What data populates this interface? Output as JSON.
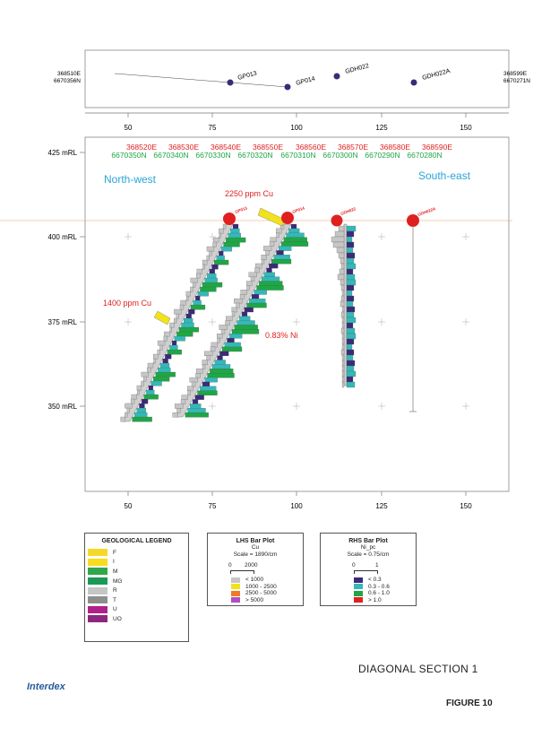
{
  "plan": {
    "left_coord": {
      "e": "368510E",
      "n": "6670356N"
    },
    "right_coord": {
      "e": "368599E",
      "n": "6670271N"
    },
    "holes": [
      "GP013",
      "GP014",
      "GDH022",
      "GDH022A"
    ]
  },
  "axis": {
    "x_ticks": [
      "50",
      "75",
      "100",
      "125",
      "150"
    ],
    "y_ticks": [
      "425 mRL",
      "400 mRL",
      "375 mRL",
      "350 mRL"
    ]
  },
  "eastings": [
    "368520E",
    "368530E",
    "368540E",
    "368550E",
    "368560E",
    "368570E",
    "368580E",
    "368590E"
  ],
  "northings": [
    "6670350N",
    "6670340N",
    "6670330N",
    "6670320N",
    "6670310N",
    "6670300N",
    "6670290N",
    "6670280N"
  ],
  "section": {
    "north_west": "North-west",
    "south_east": "South-east",
    "collars": [
      "GP013",
      "GP014",
      "GDH022",
      "GDH022A"
    ],
    "annotations": [
      "2250 ppm Cu",
      "1400 ppm Cu",
      "0.83% Ni"
    ]
  },
  "geo_legend": {
    "title": "GEOLOGICAL LEGEND",
    "items": [
      {
        "code": "F",
        "color": "#f5d92a"
      },
      {
        "code": "I",
        "color": "#f7dc1f"
      },
      {
        "code": "M",
        "color": "#2ea84a"
      },
      {
        "code": "MG",
        "color": "#1a9a56"
      },
      {
        "code": "R",
        "color": "#c6c6c6"
      },
      {
        "code": "T",
        "color": "#8e8e8e"
      },
      {
        "code": "U",
        "color": "#b0208a"
      },
      {
        "code": "UO",
        "color": "#8e2680"
      }
    ]
  },
  "lhs": {
    "title": "LHS Bar Plot",
    "field": "Cu",
    "scale": "Scale = 1890/cm",
    "scale_ticks": [
      "0",
      "2000"
    ],
    "items": [
      {
        "label": "< 1000",
        "color": "#c6c6c6"
      },
      {
        "label": "1000 - 2500",
        "color": "#f2e21c"
      },
      {
        "label": "2500 - 5000",
        "color": "#ef7a2a"
      },
      {
        "label": "> 5000",
        "color": "#b24fbf"
      }
    ]
  },
  "rhs": {
    "title": "RHS Bar Plot",
    "field": "Ni_pc",
    "scale": "Scale = 0.75/cm",
    "scale_ticks": [
      "0",
      "1"
    ],
    "items": [
      {
        "label": "< 0.3",
        "color": "#3c2a78"
      },
      {
        "label": "0.3 - 0.6",
        "color": "#34b8b8"
      },
      {
        "label": "0.6 - 1.0",
        "color": "#1fa645"
      },
      {
        "label": "> 1.0",
        "color": "#e02020"
      }
    ]
  },
  "title": "DIAGONAL SECTION 1",
  "figure": "FIGURE 10",
  "logo": "Interdex"
}
